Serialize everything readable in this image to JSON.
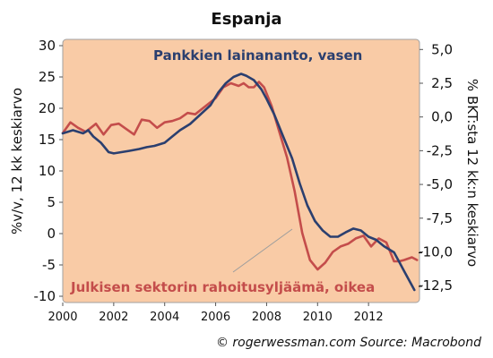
{
  "chart_data": {
    "type": "line",
    "title": "Espanja",
    "ylabel_left": "%v/v, 12 kk keskiarvo",
    "ylabel_right": "% BKT:sta 12 kk:n keskiarvo",
    "ylim_left": [
      -11,
      31
    ],
    "ylim_right": [
      -13.75,
      5.75
    ],
    "yticks_left": [
      "30",
      "25",
      "20",
      "15",
      "10",
      "5",
      "0",
      "-5",
      "-10"
    ],
    "yticks_right": [
      "5,0",
      "2,5",
      "0,0",
      "-2,5",
      "-5,0",
      "-7,5",
      "-10,0",
      "-12,5"
    ],
    "xlim": [
      2000,
      2014
    ],
    "xticks": [
      "2000",
      "2002",
      "2004",
      "2006",
      "2008",
      "2010",
      "2012"
    ],
    "grid": false,
    "background_color": "#f9cba6",
    "series": [
      {
        "name": "Pankkien lainananto, vasen",
        "axis": "left",
        "color": "#2b3f6f",
        "x": [
          2000.0,
          2000.4,
          2000.8,
          2001.0,
          2001.2,
          2001.5,
          2001.8,
          2002.0,
          2002.3,
          2002.6,
          2003.0,
          2003.3,
          2003.6,
          2004.0,
          2004.3,
          2004.6,
          2005.0,
          2005.4,
          2005.8,
          2006.1,
          2006.4,
          2006.7,
          2007.0,
          2007.2,
          2007.5,
          2007.8,
          2008.0,
          2008.3,
          2008.6,
          2009.0,
          2009.3,
          2009.6,
          2009.9,
          2010.2,
          2010.5,
          2010.8,
          2011.1,
          2011.4,
          2011.7,
          2012.0,
          2012.3,
          2012.6,
          2013.0,
          2013.2,
          2013.4,
          2013.6,
          2013.8
        ],
        "y": [
          16.0,
          16.5,
          16.0,
          16.5,
          15.5,
          14.5,
          13.0,
          12.8,
          13.0,
          13.2,
          13.5,
          13.8,
          14.0,
          14.5,
          15.5,
          16.5,
          17.5,
          19.0,
          20.5,
          22.5,
          24.0,
          25.0,
          25.5,
          25.2,
          24.5,
          23.0,
          21.5,
          19.0,
          16.0,
          12.0,
          8.0,
          4.5,
          2.0,
          0.5,
          -0.5,
          -0.5,
          0.2,
          0.8,
          0.5,
          -0.5,
          -1.0,
          -2.0,
          -3.0,
          -4.5,
          -6.0,
          -7.5,
          -9.0
        ]
      },
      {
        "name": "Julkisen sektorin rahoitusyljäämä, oikea",
        "axis": "right",
        "color": "#c44d4b",
        "x": [
          2000.0,
          2000.3,
          2000.6,
          2000.9,
          2001.1,
          2001.3,
          2001.6,
          2001.9,
          2002.2,
          2002.5,
          2002.8,
          2003.1,
          2003.4,
          2003.7,
          2004.0,
          2004.3,
          2004.6,
          2004.9,
          2005.2,
          2005.6,
          2006.0,
          2006.3,
          2006.6,
          2006.9,
          2007.1,
          2007.3,
          2007.5,
          2007.7,
          2007.9,
          2008.2,
          2008.5,
          2008.8,
          2009.1,
          2009.4,
          2009.7,
          2010.0,
          2010.3,
          2010.6,
          2010.9,
          2011.2,
          2011.5,
          2011.8,
          2012.1,
          2012.4,
          2012.7,
          2013.0,
          2013.2,
          2013.4,
          2013.7,
          2013.9
        ],
        "y": [
          -1.2,
          -0.4,
          -0.8,
          -1.1,
          -0.8,
          -0.5,
          -1.3,
          -0.6,
          -0.5,
          -0.9,
          -1.3,
          -0.2,
          -0.3,
          -0.8,
          -0.4,
          -0.3,
          -0.1,
          0.3,
          0.2,
          0.8,
          1.4,
          2.2,
          2.5,
          2.3,
          2.5,
          2.2,
          2.2,
          2.6,
          2.2,
          0.8,
          -1.1,
          -3.0,
          -5.5,
          -8.6,
          -10.6,
          -11.3,
          -10.8,
          -10.0,
          -9.6,
          -9.4,
          -9.0,
          -8.8,
          -9.6,
          -9.0,
          -9.3,
          -10.7,
          -10.7,
          -10.6,
          -10.4,
          -10.6
        ]
      }
    ],
    "annotations": [
      {
        "text": "Pankkien lainananto, vasen",
        "color": "#2b3f6f"
      },
      {
        "text": "Julkisen sektorin rahoitusyljäämä, oikea",
        "color": "#c44d4b"
      }
    ],
    "source": "© rogerwessman.com Source: Macrobond"
  }
}
